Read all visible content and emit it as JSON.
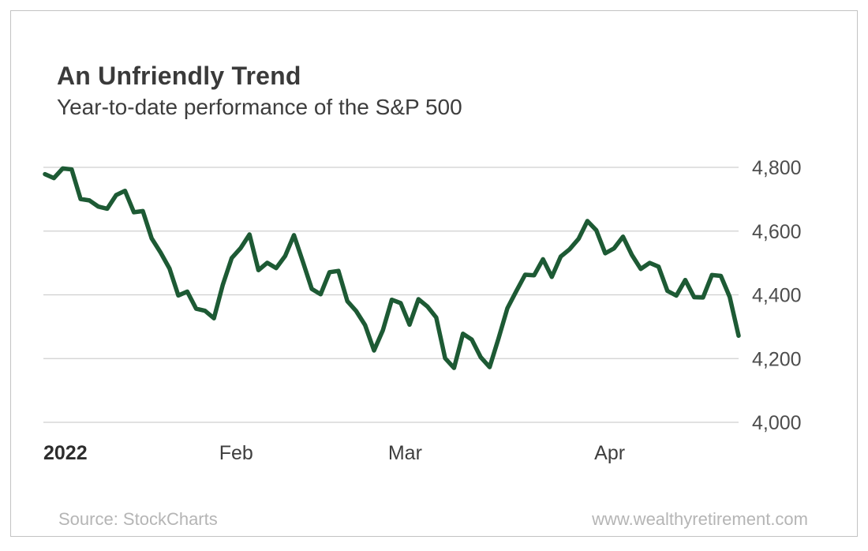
{
  "header": {
    "title": "An Unfriendly Trend",
    "subtitle": "Year-to-date performance of the S&P 500"
  },
  "footer": {
    "source": "Source: StockCharts",
    "website": "www.wealthyretirement.com"
  },
  "colors": {
    "line": "#1d5a34",
    "grid": "#cfcfcf",
    "y_tick_label": "#4d4d4d",
    "x_tick_label": "#3e3e3e",
    "year_label": "#2d2d2d",
    "title_text": "#3a3a3a",
    "footer_text": "#b5b5b5",
    "card_border": "#c3c3c3",
    "background": "#ffffff"
  },
  "chart_data": {
    "type": "line",
    "title": "An Unfriendly Trend",
    "subtitle": "Year-to-date performance of the S&P 500",
    "series_name": "S&P 500",
    "x_unit": "trading days, late Dec 2021 through Apr 22 2022",
    "grid": "horizontal-only",
    "legend": "none",
    "ylim": [
      4000,
      4800
    ],
    "y_ticks": [
      {
        "value": 4800,
        "label": "4,800"
      },
      {
        "value": 4600,
        "label": "4,600"
      },
      {
        "value": 4400,
        "label": "4,400"
      },
      {
        "value": 4200,
        "label": "4,200"
      },
      {
        "value": 4000,
        "label": "4,000"
      }
    ],
    "x_ticks": [
      {
        "label": "2022",
        "month_start_index": 0,
        "style": "year"
      },
      {
        "label": "Feb",
        "month_start_index": 22,
        "style": "month"
      },
      {
        "label": "Mar",
        "month_start_index": 41,
        "style": "month"
      },
      {
        "label": "Apr",
        "month_start_index": 64,
        "style": "month"
      }
    ],
    "dates": [
      "2021-12-30",
      "2021-12-31",
      "2022-01-03",
      "2022-01-04",
      "2022-01-05",
      "2022-01-06",
      "2022-01-07",
      "2022-01-10",
      "2022-01-11",
      "2022-01-12",
      "2022-01-13",
      "2022-01-14",
      "2022-01-18",
      "2022-01-19",
      "2022-01-20",
      "2022-01-21",
      "2022-01-24",
      "2022-01-25",
      "2022-01-26",
      "2022-01-27",
      "2022-01-28",
      "2022-01-31",
      "2022-02-01",
      "2022-02-02",
      "2022-02-03",
      "2022-02-04",
      "2022-02-07",
      "2022-02-08",
      "2022-02-09",
      "2022-02-10",
      "2022-02-11",
      "2022-02-14",
      "2022-02-15",
      "2022-02-16",
      "2022-02-17",
      "2022-02-18",
      "2022-02-22",
      "2022-02-23",
      "2022-02-24",
      "2022-02-25",
      "2022-02-28",
      "2022-03-01",
      "2022-03-02",
      "2022-03-03",
      "2022-03-04",
      "2022-03-07",
      "2022-03-08",
      "2022-03-09",
      "2022-03-10",
      "2022-03-11",
      "2022-03-14",
      "2022-03-15",
      "2022-03-16",
      "2022-03-17",
      "2022-03-18",
      "2022-03-21",
      "2022-03-22",
      "2022-03-23",
      "2022-03-24",
      "2022-03-25",
      "2022-03-28",
      "2022-03-29",
      "2022-03-30",
      "2022-03-31",
      "2022-04-01",
      "2022-04-04",
      "2022-04-05",
      "2022-04-06",
      "2022-04-07",
      "2022-04-08",
      "2022-04-11",
      "2022-04-12",
      "2022-04-13",
      "2022-04-14",
      "2022-04-18",
      "2022-04-19",
      "2022-04-20",
      "2022-04-21",
      "2022-04-22"
    ],
    "values": [
      4778.7,
      4766.2,
      4796.6,
      4793.5,
      4700.6,
      4696.1,
      4677.0,
      4670.3,
      4713.1,
      4726.4,
      4659.0,
      4662.9,
      4577.1,
      4532.8,
      4482.7,
      4397.9,
      4410.1,
      4356.5,
      4349.9,
      4326.5,
      4431.9,
      4515.6,
      4546.5,
      4589.4,
      4477.4,
      4500.5,
      4483.9,
      4521.5,
      4587.2,
      4504.1,
      4418.6,
      4401.7,
      4471.1,
      4475.0,
      4380.3,
      4348.9,
      4304.8,
      4225.5,
      4288.7,
      4384.7,
      4373.9,
      4306.3,
      4386.5,
      4363.5,
      4328.9,
      4201.1,
      4170.7,
      4277.9,
      4259.5,
      4204.3,
      4173.1,
      4262.5,
      4357.9,
      4411.7,
      4463.1,
      4461.2,
      4511.6,
      4456.2,
      4520.2,
      4543.1,
      4575.5,
      4631.6,
      4602.5,
      4530.4,
      4545.9,
      4582.6,
      4525.1,
      4481.2,
      4500.2,
      4488.3,
      4412.5,
      4397.5,
      4446.6,
      4392.6,
      4391.7,
      4462.2,
      4459.5,
      4393.7,
      4271.8
    ]
  }
}
